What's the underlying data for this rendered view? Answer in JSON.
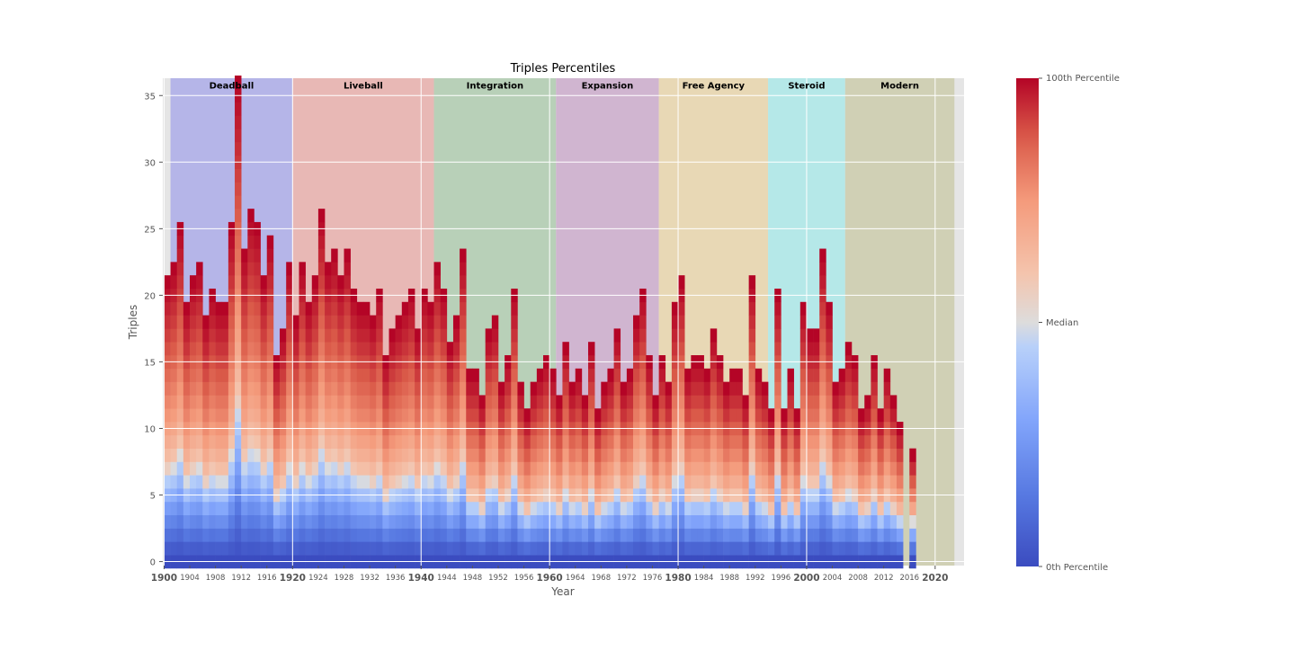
{
  "chart_data": {
    "type": "heatmap",
    "title": "Triples Percentiles",
    "xlabel": "Year",
    "ylabel": "Triples",
    "xlim": [
      1900,
      2024
    ],
    "ylim": [
      -0.3,
      36.3
    ],
    "grid": true,
    "x_major_ticks": [
      "1900",
      "1920",
      "1940",
      "1960",
      "1980",
      "2000",
      "2020"
    ],
    "x_minor_ticks": [
      "1904",
      "1908",
      "1912",
      "1916",
      "1924",
      "1928",
      "1932",
      "1936",
      "1944",
      "1948",
      "1952",
      "1956",
      "1964",
      "1968",
      "1972",
      "1976",
      "1984",
      "1988",
      "1992",
      "1996",
      "2004",
      "2008",
      "2012",
      "2016"
    ],
    "y_ticks": [
      "0",
      "5",
      "10",
      "15",
      "20",
      "25",
      "30",
      "35"
    ],
    "eras": [
      {
        "name": "Deadball",
        "start": 1901,
        "end": 1920,
        "color": "#b5b5e8"
      },
      {
        "name": "Liveball",
        "start": 1920,
        "end": 1942,
        "color": "#e8b8b5"
      },
      {
        "name": "Integration",
        "start": 1942,
        "end": 1961,
        "color": "#b8d0b8"
      },
      {
        "name": "Expansion",
        "start": 1961,
        "end": 1977,
        "color": "#d0b5d0"
      },
      {
        "name": "Free Agency",
        "start": 1977,
        "end": 1994,
        "color": "#e8d8b5"
      },
      {
        "name": "Steroid",
        "start": 1994,
        "end": 2006,
        "color": "#b5e8e8"
      },
      {
        "name": "Modern",
        "start": 2006,
        "end": 2023,
        "color": "#d0d0b5"
      }
    ],
    "max_triples_start_year": 1900,
    "max_triples_by_year": [
      21,
      22,
      25,
      19,
      21,
      22,
      18,
      20,
      19,
      19,
      25,
      36,
      23,
      26,
      25,
      21,
      24,
      15,
      17,
      22,
      18,
      22,
      19,
      21,
      26,
      22,
      23,
      21,
      23,
      20,
      19,
      19,
      18,
      20,
      15,
      17,
      18,
      19,
      20,
      17,
      20,
      19,
      22,
      20,
      16,
      18,
      23,
      14,
      14,
      12,
      17,
      18,
      13,
      15,
      20,
      13,
      11,
      13,
      14,
      15,
      14,
      12,
      16,
      13,
      14,
      12,
      16,
      11,
      13,
      14,
      17,
      13,
      14,
      18,
      20,
      15,
      12,
      15,
      13,
      19,
      21,
      14,
      15,
      15,
      14,
      17,
      15,
      13,
      14,
      14,
      12,
      21,
      14,
      13,
      11,
      20,
      11,
      14,
      11,
      19,
      17,
      17,
      23,
      19,
      13,
      14,
      16,
      15,
      11,
      12,
      15,
      11,
      14,
      12,
      10,
      0,
      8
    ],
    "colorbar": {
      "top_label": "100th Percentile",
      "mid_label": "Median",
      "bottom_label": "0th Percentile",
      "colors": [
        "#3b4cc0",
        "#dddcdc",
        "#b40426"
      ]
    },
    "background_color": "#e5e5e5"
  }
}
